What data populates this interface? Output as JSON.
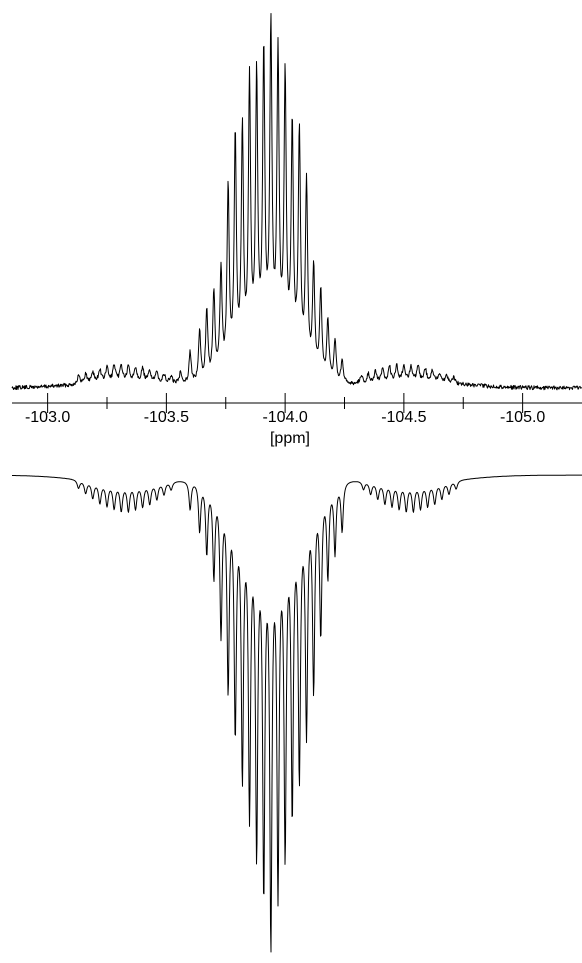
{
  "chart_data": {
    "type": "line",
    "xlabel": "[ppm]",
    "x_axis_reversed": true,
    "xlim": [
      -102.85,
      -105.25
    ],
    "ticks": {
      "major": [
        -103.0,
        -103.5,
        -104.0,
        -104.5,
        -105.0
      ],
      "major_labels": [
        "-103.0",
        "-103.5",
        "-104.0",
        "-104.5",
        "-105.0"
      ],
      "minor": [
        -103.25,
        -103.75,
        -104.25,
        -104.75
      ]
    },
    "series": [
      {
        "role": "upper",
        "center": -103.94,
        "lines": {
          "x": [
            -103.56,
            -103.6,
            -103.64,
            -103.67,
            -103.7,
            -103.73,
            -103.76,
            -103.79,
            -103.82,
            -103.85,
            -103.88,
            -103.91,
            -103.94,
            -103.97,
            -104.0,
            -104.03,
            -104.06,
            -104.09,
            -104.12,
            -104.15,
            -104.18,
            -104.21,
            -104.24
          ],
          "y": [
            0.04,
            0.1,
            0.16,
            0.22,
            0.27,
            0.33,
            0.58,
            0.72,
            0.72,
            0.86,
            0.86,
            0.92,
            1.0,
            0.92,
            0.86,
            0.72,
            0.72,
            0.58,
            0.33,
            0.27,
            0.19,
            0.13,
            0.07
          ]
        },
        "satellites": [
          {
            "center": -103.33,
            "width": 0.6,
            "x": [
              -103.13,
              -103.16,
              -103.19,
              -103.22,
              -103.25,
              -103.28,
              -103.31,
              -103.34,
              -103.37,
              -103.4,
              -103.43,
              -103.46,
              -103.49,
              -103.52
            ],
            "y": [
              0.025,
              0.03,
              0.035,
              0.04,
              0.045,
              0.05,
              0.05,
              0.045,
              0.045,
              0.04,
              0.035,
              0.03,
              0.025,
              0.02
            ]
          },
          {
            "center": -104.55,
            "width": 0.6,
            "x": [
              -104.32,
              -104.35,
              -104.38,
              -104.41,
              -104.44,
              -104.47,
              -104.5,
              -104.53,
              -104.56,
              -104.59,
              -104.62,
              -104.65,
              -104.68,
              -104.71
            ],
            "y": [
              0.025,
              0.03,
              0.035,
              0.04,
              0.045,
              0.05,
              0.05,
              0.045,
              0.045,
              0.04,
              0.035,
              0.03,
              0.025,
              0.02
            ]
          }
        ]
      },
      {
        "role": "lower",
        "center": -103.94,
        "lines": {
          "x": [
            -103.6,
            -103.64,
            -103.67,
            -103.7,
            -103.73,
            -103.76,
            -103.79,
            -103.82,
            -103.85,
            -103.88,
            -103.91,
            -103.94,
            -103.97,
            -104.0,
            -104.03,
            -104.06,
            -104.09,
            -104.12,
            -104.15,
            -104.18,
            -104.21,
            -104.24
          ],
          "y": [
            0.07,
            0.12,
            0.17,
            0.22,
            0.35,
            0.47,
            0.56,
            0.65,
            0.72,
            0.8,
            0.88,
            1.0,
            0.88,
            0.8,
            0.72,
            0.65,
            0.56,
            0.47,
            0.35,
            0.22,
            0.17,
            0.12
          ]
        },
        "satellites": [
          {
            "center": -103.34,
            "width": 0.6,
            "x": [
              -103.13,
              -103.16,
              -103.19,
              -103.22,
              -103.25,
              -103.28,
              -103.31,
              -103.34,
              -103.37,
              -103.4,
              -103.43,
              -103.46,
              -103.49,
              -103.52
            ],
            "y": [
              0.02,
              0.03,
              0.04,
              0.05,
              0.055,
              0.06,
              0.065,
              0.065,
              0.06,
              0.055,
              0.05,
              0.04,
              0.03,
              0.02
            ]
          },
          {
            "center": -104.54,
            "width": 0.6,
            "x": [
              -104.33,
              -104.36,
              -104.39,
              -104.42,
              -104.45,
              -104.48,
              -104.51,
              -104.54,
              -104.57,
              -104.6,
              -104.63,
              -104.66,
              -104.69,
              -104.72
            ],
            "y": [
              0.02,
              0.03,
              0.04,
              0.05,
              0.055,
              0.06,
              0.065,
              0.065,
              0.06,
              0.055,
              0.05,
              0.04,
              0.03,
              0.02
            ]
          }
        ]
      }
    ]
  }
}
